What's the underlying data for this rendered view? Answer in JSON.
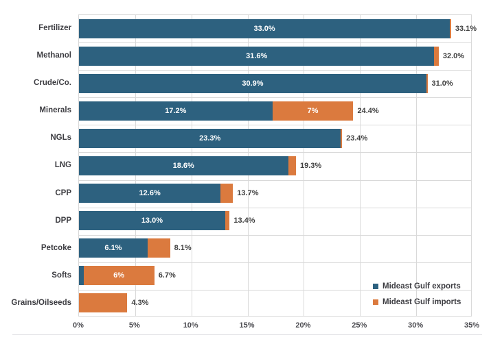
{
  "chart_data": {
    "type": "bar",
    "orientation": "horizontal",
    "stacked": true,
    "title": "",
    "xlabel": "",
    "ylabel": "",
    "xlim": [
      0,
      35
    ],
    "x_tick_step": 5,
    "x_ticks": [
      "0%",
      "5%",
      "10%",
      "15%",
      "20%",
      "25%",
      "30%",
      "35%"
    ],
    "grid": true,
    "legend_position": "bottom-right",
    "categories": [
      "Fertilizer",
      "Methanol",
      "Crude/Co.",
      "Minerals",
      "NGLs",
      "LNG",
      "CPP",
      "DPP",
      "Petcoke",
      "Softs",
      "Grains/Oilseeds"
    ],
    "series": [
      {
        "name": "Mideast Gulf exports",
        "color": "#2D617F",
        "values": [
          33.0,
          31.6,
          30.9,
          17.2,
          23.3,
          18.6,
          12.6,
          13.0,
          6.1,
          0.4,
          0
        ],
        "segment_labels": [
          "33.0%",
          "31.6%",
          "30.9%",
          "17.2%",
          "23.3%",
          "18.6%",
          "12.6%",
          "13.0%",
          "6.1%",
          "",
          ""
        ]
      },
      {
        "name": "Mideast Gulf imports",
        "color": "#DB7A3E",
        "values": [
          0.1,
          0.4,
          0.1,
          7.2,
          0.1,
          0.7,
          1.1,
          0.4,
          2.0,
          6.3,
          4.3
        ],
        "segment_labels": [
          "",
          "",
          "",
          "7%",
          "",
          "",
          "",
          "",
          "",
          "6%",
          ""
        ]
      }
    ],
    "total_labels": [
      "33.1%",
      "32.0%",
      "31.0%",
      "24.4%",
      "23.4%",
      "19.3%",
      "13.7%",
      "13.4%",
      "8.1%",
      "6.7%",
      "4.3%"
    ]
  },
  "legend": {
    "items": [
      {
        "label": "Mideast Gulf exports",
        "color": "#2D617F"
      },
      {
        "label": "Mideast Gulf imports",
        "color": "#DB7A3E"
      }
    ]
  },
  "colors": {
    "exports": "#2D617F",
    "imports": "#DB7A3E",
    "gridline": "#d9d9d9",
    "text": "#3d3d42",
    "bar_label": "#ffffff"
  }
}
